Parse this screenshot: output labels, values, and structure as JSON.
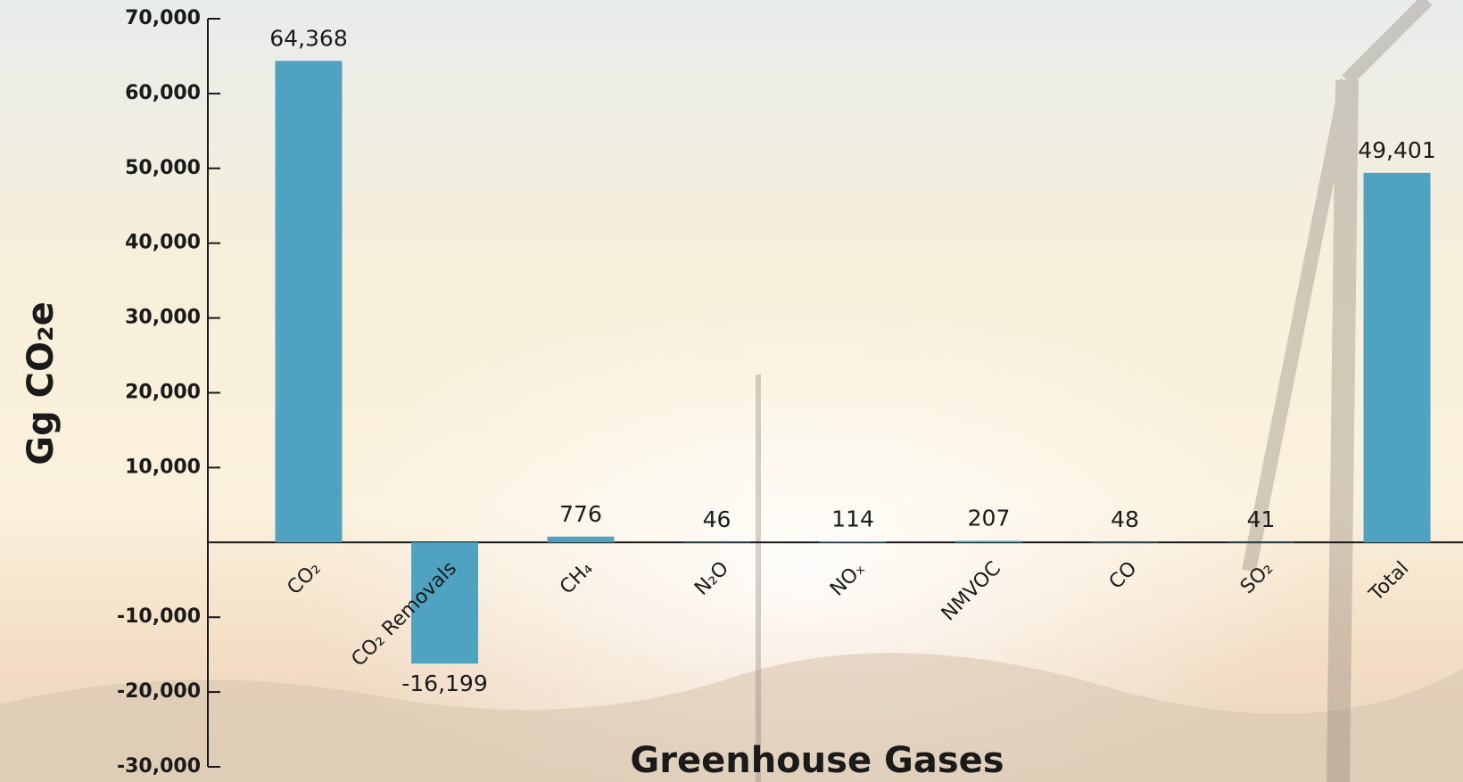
{
  "chart_data": {
    "type": "bar",
    "x_label": "Greenhouse Gases",
    "y_label": "Gg CO₂e",
    "categories": [
      "CO₂",
      "CO₂ Removals",
      "CH₄",
      "N₂O",
      "NOₓ",
      "NMVOC",
      "CO",
      "SO₂",
      "Total"
    ],
    "values": [
      64368,
      -16199,
      776,
      46,
      114,
      207,
      48,
      41,
      49401
    ],
    "value_labels": [
      "64,368",
      "-16,199",
      "776",
      "46",
      "114",
      "207",
      "48",
      "41",
      "49,401"
    ],
    "color": "#4fa3c1",
    "ylim": [
      -30000,
      70000
    ],
    "yticks": [
      {
        "value": -30000,
        "label": "-30,000"
      },
      {
        "value": -20000,
        "label": "-20,000"
      },
      {
        "value": -10000,
        "label": "-10,000"
      },
      {
        "value": 10000,
        "label": "10,000"
      },
      {
        "value": 20000,
        "label": "20,000"
      },
      {
        "value": 30000,
        "label": "30,000"
      },
      {
        "value": 40000,
        "label": "40,000"
      },
      {
        "value": 50000,
        "label": "50,000"
      },
      {
        "value": 60000,
        "label": "60,000"
      },
      {
        "value": 70000,
        "label": "70,000"
      }
    ],
    "grid": false
  }
}
